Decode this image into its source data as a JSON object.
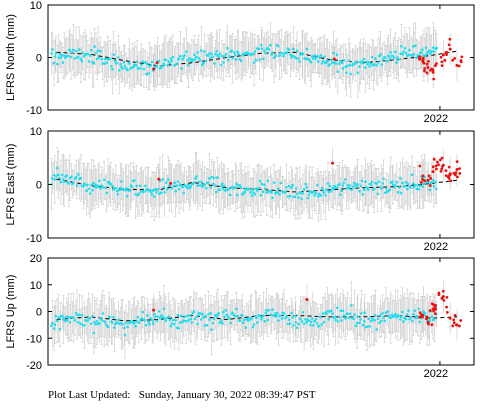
{
  "footer": {
    "label": "Plot Last Updated:",
    "timestamp": "Sunday, January 30, 2022 08:39:47 PST"
  },
  "colors": {
    "points": "#22ddee",
    "recent_points": "#ee1111",
    "error_bars": "#c8c8c8",
    "trend": "#000000",
    "frame": "#000000"
  },
  "chart_data": [
    {
      "type": "scatter",
      "title": "",
      "xlabel": "",
      "ylabel": "LFRS North (mm)",
      "ylim": [
        -10,
        10
      ],
      "yticks": [
        -10,
        0,
        10
      ],
      "xtick_labels": [
        "2022"
      ],
      "xlim": [
        2019.7,
        2022.2
      ],
      "grid": false,
      "legend": "none",
      "series": [
        {
          "name": "",
          "color": "cyan",
          "x": [
            2019.75,
            2019.85,
            2019.95,
            2020.05,
            2020.15,
            2020.25,
            2020.35,
            2020.45,
            2020.55,
            2020.65,
            2020.75,
            2020.85,
            2020.95,
            2021.05,
            2021.15,
            2021.25,
            2021.35,
            2021.45,
            2021.55,
            2021.65,
            2021.75,
            2021.85,
            2021.95
          ],
          "y": [
            0.0,
            0.6,
            0.4,
            -0.6,
            -1.4,
            -1.8,
            -1.6,
            -0.8,
            0.2,
            0.4,
            0.2,
            0.6,
            0.9,
            1.1,
            0.7,
            -0.2,
            -0.9,
            -1.3,
            -1.1,
            -0.4,
            0.4,
            0.9,
            1.3
          ]
        },
        {
          "name": "",
          "color": "red",
          "x": [
            2020.32,
            2020.34,
            2021.38,
            2021.9,
            2021.93,
            2021.96,
            2022.02,
            2022.06,
            2022.1
          ],
          "y": [
            -2.2,
            -1.0,
            -0.3,
            -0.8,
            -1.9,
            -2.8,
            0.5,
            1.6,
            -1.5
          ]
        },
        {
          "name": "trend",
          "x": [
            2019.75,
            2019.95,
            2020.15,
            2020.35,
            2020.55,
            2020.75,
            2020.95,
            2021.15,
            2021.35,
            2021.55,
            2021.75,
            2021.95,
            2022.1
          ],
          "y": [
            1.0,
            0.6,
            -0.6,
            -1.6,
            -1.0,
            0.0,
            0.8,
            1.0,
            -0.4,
            -1.0,
            -0.4,
            0.4,
            1.2
          ]
        }
      ]
    },
    {
      "type": "scatter",
      "title": "",
      "xlabel": "",
      "ylabel": "LFRS East (mm)",
      "ylim": [
        -10,
        10
      ],
      "yticks": [
        -10,
        0,
        10
      ],
      "xtick_labels": [
        "2022"
      ],
      "xlim": [
        2019.7,
        2022.2
      ],
      "grid": false,
      "legend": "none",
      "series": [
        {
          "name": "",
          "color": "cyan",
          "x": [
            2019.75,
            2019.85,
            2019.95,
            2020.05,
            2020.15,
            2020.25,
            2020.35,
            2020.45,
            2020.55,
            2020.65,
            2020.75,
            2020.85,
            2020.95,
            2021.05,
            2021.15,
            2021.25,
            2021.35,
            2021.45,
            2021.55,
            2021.65,
            2021.75,
            2021.85,
            2021.95
          ],
          "y": [
            1.4,
            0.6,
            -0.4,
            -0.8,
            -1.1,
            -1.3,
            -1.1,
            -0.4,
            0.3,
            0.1,
            -0.6,
            -1.0,
            -0.9,
            -1.2,
            -1.6,
            -1.5,
            -1.1,
            -0.5,
            -0.1,
            -0.2,
            -0.4,
            0.0,
            0.6
          ]
        },
        {
          "name": "",
          "color": "red",
          "x": [
            2020.35,
            2020.42,
            2021.37,
            2021.9,
            2021.93,
            2021.96,
            2022.02,
            2022.06,
            2022.1
          ],
          "y": [
            1.0,
            0.2,
            4.0,
            1.6,
            0.8,
            2.4,
            3.6,
            2.0,
            2.8
          ]
        },
        {
          "name": "trend",
          "x": [
            2019.75,
            2019.95,
            2020.15,
            2020.35,
            2020.55,
            2020.75,
            2020.95,
            2021.15,
            2021.35,
            2021.55,
            2021.75,
            2021.95,
            2022.1
          ],
          "y": [
            1.0,
            -0.2,
            -0.9,
            -1.0,
            0.4,
            -0.6,
            -0.9,
            -1.4,
            -1.0,
            -0.6,
            -0.4,
            0.2,
            0.8
          ]
        }
      ]
    },
    {
      "type": "scatter",
      "title": "",
      "xlabel": "",
      "ylabel": "LFRS Up (mm)",
      "ylim": [
        -20,
        20
      ],
      "yticks": [
        -20,
        -10,
        0,
        10,
        20
      ],
      "xtick_labels": [
        "2022"
      ],
      "xlim": [
        2019.7,
        2022.2
      ],
      "grid": false,
      "legend": "none",
      "series": [
        {
          "name": "",
          "color": "cyan",
          "x": [
            2019.75,
            2019.85,
            2019.95,
            2020.05,
            2020.15,
            2020.25,
            2020.35,
            2020.45,
            2020.55,
            2020.65,
            2020.75,
            2020.85,
            2020.95,
            2021.05,
            2021.15,
            2021.25,
            2021.35,
            2021.45,
            2021.55,
            2021.65,
            2021.75,
            2021.85,
            2021.95
          ],
          "y": [
            -3.5,
            -2.0,
            -4.5,
            -3.0,
            -5.5,
            -3.5,
            -2.5,
            -4.0,
            -2.0,
            -3.0,
            -1.5,
            -3.5,
            -2.0,
            -1.0,
            -3.0,
            -4.0,
            -2.0,
            -1.5,
            -3.5,
            -2.5,
            -1.0,
            -2.5,
            -1.5
          ]
        },
        {
          "name": "",
          "color": "red",
          "x": [
            2020.32,
            2021.22,
            2021.9,
            2021.93,
            2021.96,
            2022.02,
            2022.06,
            2022.1
          ],
          "y": [
            0.5,
            4.5,
            -1.5,
            -4.0,
            1.0,
            5.5,
            -2.5,
            -5.0
          ]
        },
        {
          "name": "trend",
          "x": [
            2019.75,
            2019.95,
            2020.15,
            2020.35,
            2020.55,
            2020.75,
            2020.95,
            2021.15,
            2021.35,
            2021.55,
            2021.75,
            2021.95,
            2022.1
          ],
          "y": [
            -3.0,
            -2.0,
            -3.5,
            -3.0,
            -1.5,
            -3.0,
            -1.5,
            -1.5,
            -2.0,
            -2.0,
            -1.5,
            -2.5,
            -2.0
          ]
        }
      ]
    }
  ]
}
